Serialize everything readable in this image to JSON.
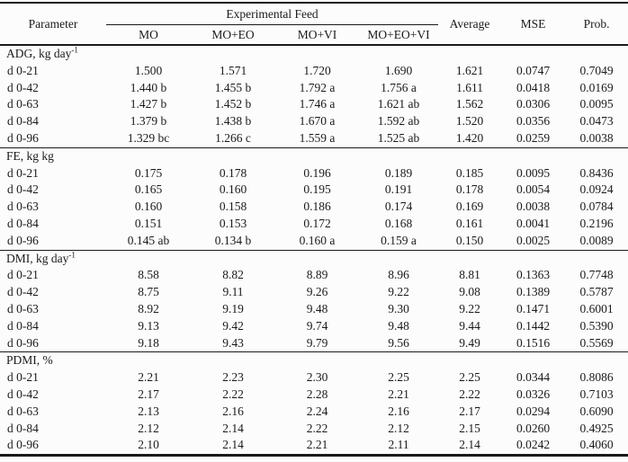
{
  "table": {
    "header": {
      "parameter": "Parameter",
      "group": "Experimental Feed",
      "feed_columns": [
        "MO",
        "MO+EO",
        "MO+VI",
        "MO+EO+VI"
      ],
      "stat_columns": [
        "Average",
        "MSE",
        "Prob."
      ]
    },
    "sections": [
      {
        "label": "ADG, kg day",
        "label_sup": "-1",
        "rows": [
          {
            "parameter": "d 0-21",
            "values": [
              "1.500",
              "1.571",
              "1.720",
              "1.690",
              "1.621",
              "0.0747",
              "0.7049"
            ]
          },
          {
            "parameter": "d 0-42",
            "values": [
              "1.440 b",
              "1.455 b",
              "1.792 a",
              "1.756 a",
              "1.611",
              "0.0418",
              "0.0169"
            ]
          },
          {
            "parameter": "d 0-63",
            "values": [
              "1.427 b",
              "1.452 b",
              "1.746 a",
              "1.621 ab",
              "1.562",
              "0.0306",
              "0.0095"
            ]
          },
          {
            "parameter": "d 0-84",
            "values": [
              "1.379 b",
              "1.438 b",
              "1.670 a",
              "1.592 ab",
              "1.520",
              "0.0356",
              "0.0473"
            ]
          },
          {
            "parameter": "d 0-96",
            "values": [
              "1.329 bc",
              "1.266 c",
              "1.559 a",
              "1.525 ab",
              "1.420",
              "0.0259",
              "0.0038"
            ]
          }
        ]
      },
      {
        "label": "FE, kg kg",
        "label_sup": "",
        "rows": [
          {
            "parameter": "d 0-21",
            "values": [
              "0.175",
              "0.178",
              "0.196",
              "0.189",
              "0.185",
              "0.0095",
              "0.8436"
            ]
          },
          {
            "parameter": "d 0-42",
            "values": [
              "0.165",
              "0.160",
              "0.195",
              "0.191",
              "0.178",
              "0.0054",
              "0.0924"
            ]
          },
          {
            "parameter": "d 0-63",
            "values": [
              "0.160",
              "0.158",
              "0.186",
              "0.174",
              "0.169",
              "0.0038",
              "0.0784"
            ]
          },
          {
            "parameter": "d 0-84",
            "values": [
              "0.151",
              "0.153",
              "0.172",
              "0.168",
              "0.161",
              "0.0041",
              "0.2196"
            ]
          },
          {
            "parameter": "d 0-96",
            "values": [
              "0.145 ab",
              "0.134 b",
              "0.160 a",
              "0.159 a",
              "0.150",
              "0.0025",
              "0.0089"
            ]
          }
        ]
      },
      {
        "label": "DMI, kg day",
        "label_sup": "-1",
        "rows": [
          {
            "parameter": "d 0-21",
            "values": [
              "8.58",
              "8.82",
              "8.89",
              "8.96",
              "8.81",
              "0.1363",
              "0.7748"
            ]
          },
          {
            "parameter": "d 0-42",
            "values": [
              "8.75",
              "9.11",
              "9.26",
              "9.22",
              "9.08",
              "0.1389",
              "0.5787"
            ]
          },
          {
            "parameter": "d 0-63",
            "values": [
              "8.92",
              "9.19",
              "9.48",
              "9.30",
              "9.22",
              "0.1471",
              "0.6001"
            ]
          },
          {
            "parameter": "d 0-84",
            "values": [
              "9.13",
              "9.42",
              "9.74",
              "9.48",
              "9.44",
              "0.1442",
              "0.5390"
            ]
          },
          {
            "parameter": "d 0-96",
            "values": [
              "9.18",
              "9.43",
              "9.79",
              "9.56",
              "9.49",
              "0.1516",
              "0.5569"
            ]
          }
        ]
      },
      {
        "label": "PDMI, %",
        "label_sup": "",
        "rows": [
          {
            "parameter": "d 0-21",
            "values": [
              "2.21",
              "2.23",
              "2.30",
              "2.25",
              "2.25",
              "0.0344",
              "0.8086"
            ]
          },
          {
            "parameter": "d 0-42",
            "values": [
              "2.17",
              "2.22",
              "2.28",
              "2.21",
              "2.22",
              "0.0326",
              "0.7103"
            ]
          },
          {
            "parameter": "d 0-63",
            "values": [
              "2.13",
              "2.16",
              "2.24",
              "2.16",
              "2.17",
              "0.0294",
              "0.6090"
            ]
          },
          {
            "parameter": "d 0-84",
            "values": [
              "2.12",
              "2.14",
              "2.22",
              "2.12",
              "2.15",
              "0.0260",
              "0.4925"
            ]
          },
          {
            "parameter": "d 0-96",
            "values": [
              "2.10",
              "2.14",
              "2.21",
              "2.11",
              "2.14",
              "0.0242",
              "0.4060"
            ]
          }
        ]
      }
    ]
  }
}
